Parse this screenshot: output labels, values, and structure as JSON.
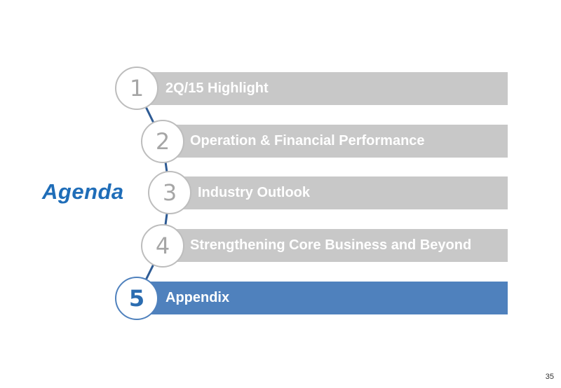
{
  "slide": {
    "title": "Agenda",
    "page_number": "35"
  },
  "agenda": {
    "items": [
      {
        "number": "1",
        "label": "2Q/15 Highlight",
        "active": false
      },
      {
        "number": "2",
        "label": "Operation & Financial Performance",
        "active": false
      },
      {
        "number": "3",
        "label": "Industry Outlook",
        "active": false
      },
      {
        "number": "4",
        "label": "Strengthening Core Business and Beyond",
        "active": false
      },
      {
        "number": "5",
        "label": "Appendix",
        "active": true
      }
    ]
  },
  "colors": {
    "inactive_bar": "#c8c8c8",
    "active_bar": "#4f81bd",
    "title": "#1f6db8",
    "connector": "#2e5b94"
  }
}
